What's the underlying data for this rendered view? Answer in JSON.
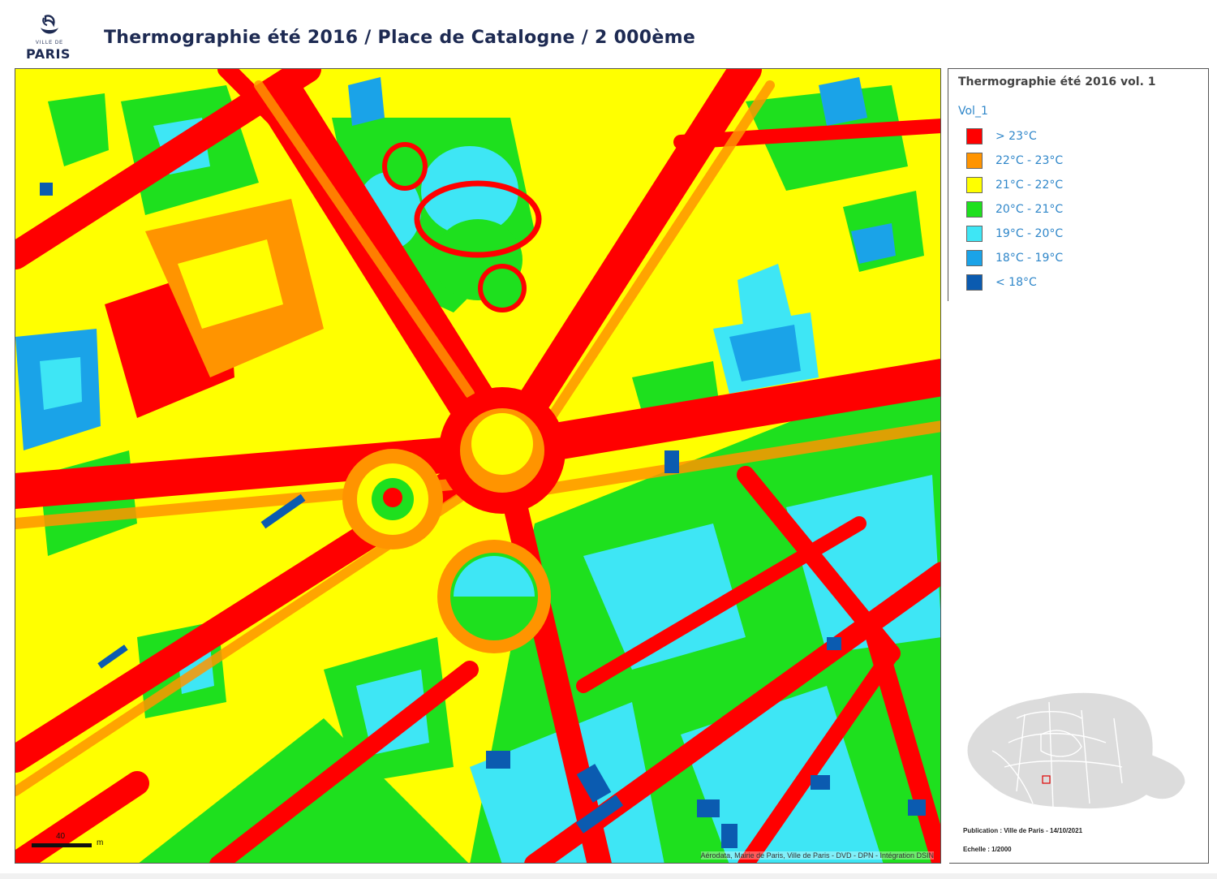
{
  "header": {
    "logo_small": "VILLE DE",
    "logo_name": "PARIS",
    "title": "Thermographie été 2016 / Place de Catalogne / 2 000ème"
  },
  "colors": {
    "gt23": "#ff0000",
    "c22_23": "#ff9400",
    "c21_22": "#ffff00",
    "c20_21": "#1ee01e",
    "c19_20": "#3ee6f5",
    "c18_19": "#1aa3e8",
    "lt18": "#0b5bb0"
  },
  "map": {
    "attribution": "Aérodata, Mairie de Paris, Ville de Paris - DVD - DPN - Intégration DSIN",
    "scale_value": "40",
    "scale_unit": "m"
  },
  "legend": {
    "title": "Thermographie été 2016 vol. 1",
    "layer": "Vol_1",
    "classes": [
      {
        "label": "> 23°C",
        "color": "#ff0000"
      },
      {
        "label": "22°C - 23°C",
        "color": "#ff9400"
      },
      {
        "label": "21°C - 22°C",
        "color": "#ffff00"
      },
      {
        "label": "20°C - 21°C",
        "color": "#1ee01e"
      },
      {
        "label": "19°C - 20°C",
        "color": "#3ee6f5"
      },
      {
        "label": "18°C - 19°C",
        "color": "#1aa3e8"
      },
      {
        "label": "< 18°C",
        "color": "#0b5bb0"
      }
    ]
  },
  "footer": {
    "publication": "Publication : Ville de Paris - 14/10/2021",
    "scale": "Echelle : 1/2000"
  }
}
